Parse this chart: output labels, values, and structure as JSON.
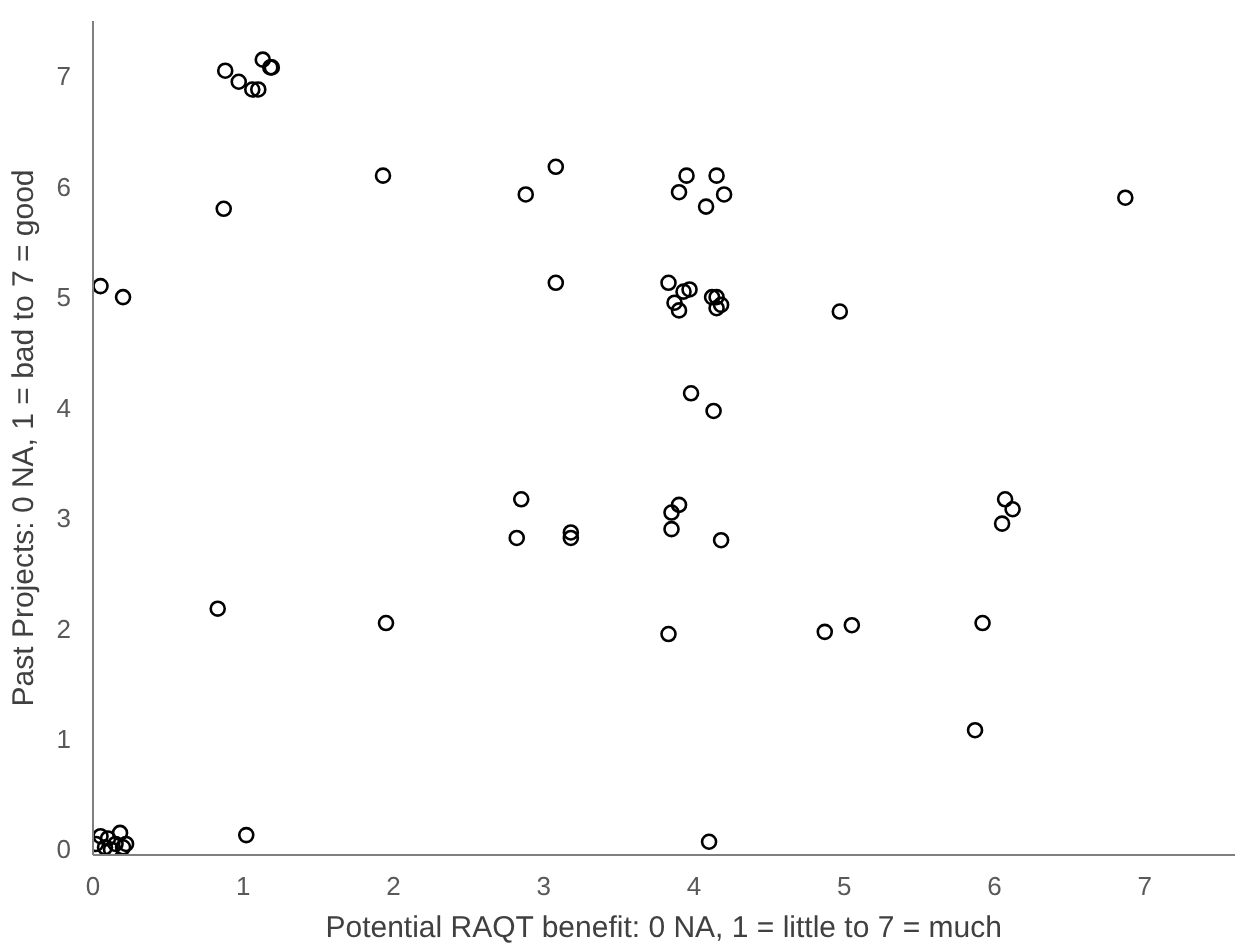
{
  "chart_data": {
    "type": "scatter",
    "xlabel": "Potential RAQT benefit: 0 NA, 1 = little to 7 = much",
    "ylabel": "Past Projects: 0 NA, 1 = bad to 7 = good",
    "xlim": [
      0,
      7.6
    ],
    "ylim": [
      -0.05,
      7.5
    ],
    "xticks": [
      0,
      1,
      2,
      3,
      4,
      5,
      6,
      7
    ],
    "yticks": [
      0,
      1,
      2,
      3,
      4,
      5,
      6,
      7
    ],
    "grid": false,
    "marker": "circle",
    "series": [
      {
        "color": "#000000",
        "x": [
          0.88,
          0.97,
          1.06,
          1.1,
          1.13,
          1.18,
          1.19,
          0.87,
          1.93,
          2.88,
          3.08,
          3.08,
          0.05,
          0.2,
          3.9,
          3.95,
          4.08,
          4.15,
          4.2,
          6.87,
          3.83,
          3.87,
          3.93,
          3.97,
          3.9,
          4.12,
          4.15,
          4.15,
          4.18,
          4.97,
          3.98,
          4.13,
          2.85,
          2.82,
          3.18,
          3.18,
          3.85,
          3.9,
          3.85,
          4.18,
          6.07,
          6.12,
          6.05,
          0.83,
          1.95,
          3.83,
          4.87,
          5.05,
          5.92,
          5.87,
          1.02,
          4.1,
          0.02,
          0.05,
          0.08,
          0.1,
          0.15,
          0.18,
          0.2,
          0.12,
          0.22
        ],
        "values": [
          7.05,
          6.95,
          6.88,
          6.88,
          7.15,
          7.08,
          7.08,
          5.8,
          6.1,
          5.93,
          6.18,
          5.13,
          5.1,
          5.0,
          5.95,
          6.1,
          5.82,
          6.1,
          5.93,
          5.9,
          5.13,
          4.95,
          5.05,
          5.07,
          4.88,
          5.0,
          5.0,
          4.9,
          4.93,
          4.87,
          4.13,
          3.97,
          3.17,
          2.82,
          2.87,
          2.82,
          3.05,
          3.12,
          2.9,
          2.8,
          3.17,
          3.08,
          2.95,
          2.18,
          2.05,
          1.95,
          1.97,
          2.03,
          2.05,
          1.08,
          0.13,
          0.07,
          0.05,
          0.12,
          0.02,
          0.1,
          0.05,
          0.15,
          0.02,
          0.0,
          0.05
        ]
      }
    ]
  }
}
